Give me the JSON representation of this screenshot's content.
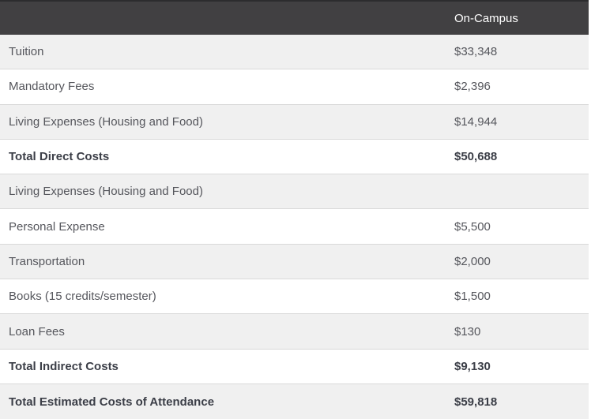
{
  "table": {
    "header": {
      "label_col": "",
      "value_col": "On-Campus"
    },
    "rows": [
      {
        "label": "Tuition",
        "value": "$33,348",
        "bold": false
      },
      {
        "label": "Mandatory Fees",
        "value": "$2,396",
        "bold": false
      },
      {
        "label": "Living Expenses (Housing and Food)",
        "value": "$14,944",
        "bold": false
      },
      {
        "label": "Total Direct Costs",
        "value": "$50,688",
        "bold": true
      },
      {
        "label": "Living Expenses (Housing and Food)",
        "value": "",
        "bold": false
      },
      {
        "label": "Personal Expense",
        "value": "$5,500",
        "bold": false
      },
      {
        "label": "Transportation",
        "value": "$2,000",
        "bold": false
      },
      {
        "label": "Books (15 credits/semester)",
        "value": "$1,500",
        "bold": false
      },
      {
        "label": "Loan Fees",
        "value": "$130",
        "bold": false
      },
      {
        "label": "Total Indirect Costs",
        "value": "$9,130",
        "bold": true
      },
      {
        "label": "Total Estimated Costs of Attendance",
        "value": "$59,818",
        "bold": true
      }
    ]
  },
  "colors": {
    "header_bg": "#414042",
    "header_top_border": "#2c2c2e",
    "header_text": "#ffffff",
    "row_stripe_bg": "#f0f0f0",
    "row_white_bg": "#ffffff",
    "row_border": "#d9d9d9",
    "label_text": "#55565c",
    "bold_text": "#3b3e47"
  }
}
